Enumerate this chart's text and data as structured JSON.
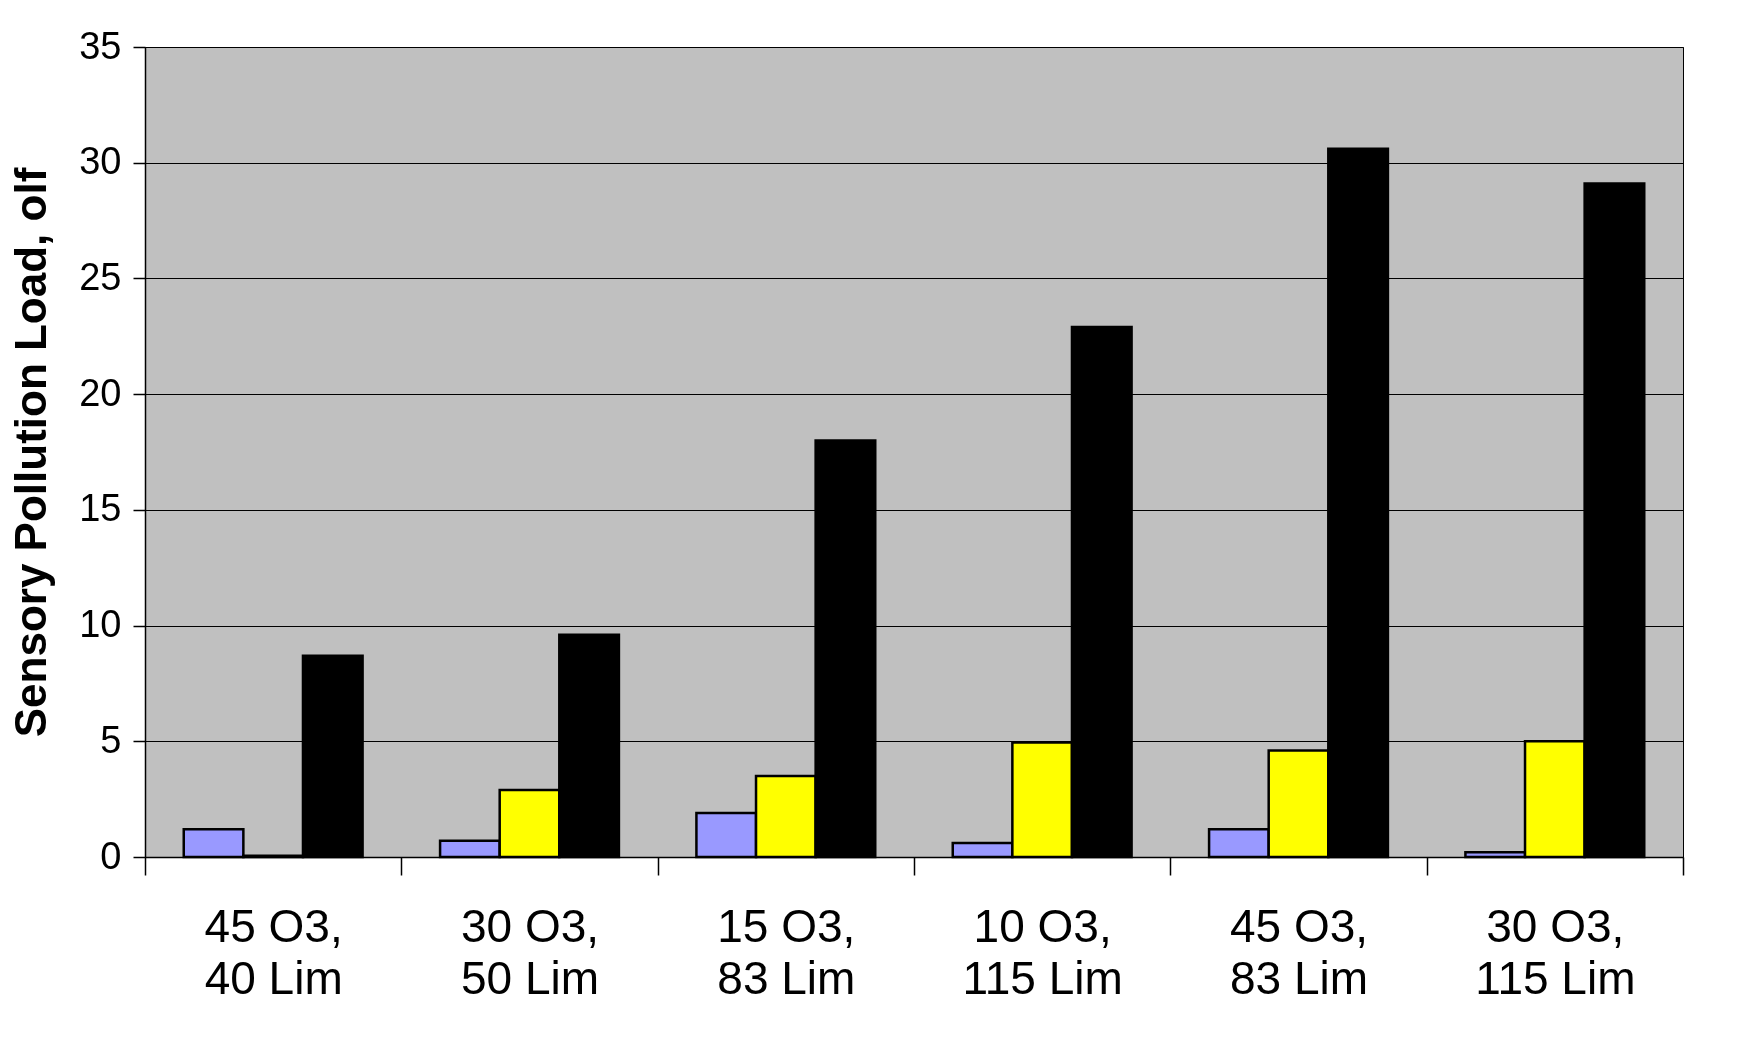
{
  "chart_data": {
    "type": "bar",
    "ylabel": "Sensory Pollution Load, olf",
    "categories": [
      "45 O3, 40 Lim",
      "30 O3, 50 Lim",
      "15 O3, 83 Lim",
      "10 O3, 115 Lim",
      "45 O3, 83 Lim",
      "30 O3, 115 Lim"
    ],
    "series": [
      {
        "color": "#9999ff",
        "values": [
          1.2,
          0.7,
          1.9,
          0.6,
          1.2,
          0.2
        ]
      },
      {
        "color": "#ffff00",
        "values": [
          0.05,
          2.9,
          3.5,
          4.95,
          4.6,
          5.0
        ]
      },
      {
        "color": "#000000",
        "values": [
          8.7,
          9.6,
          18.0,
          22.9,
          30.6,
          29.1
        ]
      }
    ],
    "ylim": [
      0,
      35
    ],
    "yticks": [
      0,
      5,
      10,
      15,
      20,
      25,
      30,
      35
    ],
    "grid": "y",
    "legend": false
  }
}
